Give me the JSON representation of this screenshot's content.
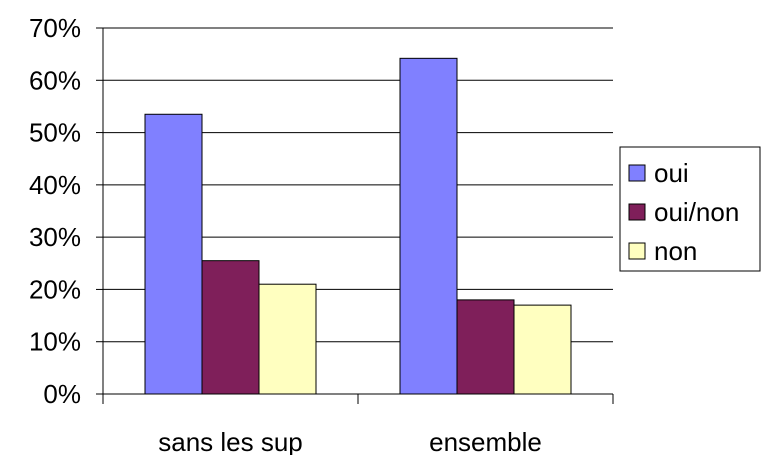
{
  "chart_data": {
    "type": "bar",
    "title": "",
    "xlabel": "",
    "ylabel": "",
    "categories": [
      "sans les sup",
      "ensemble"
    ],
    "series": [
      {
        "name": "oui",
        "color": "#8080ff",
        "values": [
          0.535,
          0.642
        ]
      },
      {
        "name": "oui/non",
        "color": "#7f1f5a",
        "values": [
          0.255,
          0.18
        ]
      },
      {
        "name": "non",
        "color": "#ffffc0",
        "values": [
          0.21,
          0.17
        ]
      }
    ],
    "ylim": [
      0,
      0.7
    ],
    "yticks": [
      0,
      0.1,
      0.2,
      0.3,
      0.4,
      0.5,
      0.6,
      0.7
    ],
    "ytick_labels": [
      "0%",
      "10%",
      "20%",
      "30%",
      "40%",
      "50%",
      "60%",
      "70%"
    ],
    "grid": true,
    "legend_position": "right"
  }
}
